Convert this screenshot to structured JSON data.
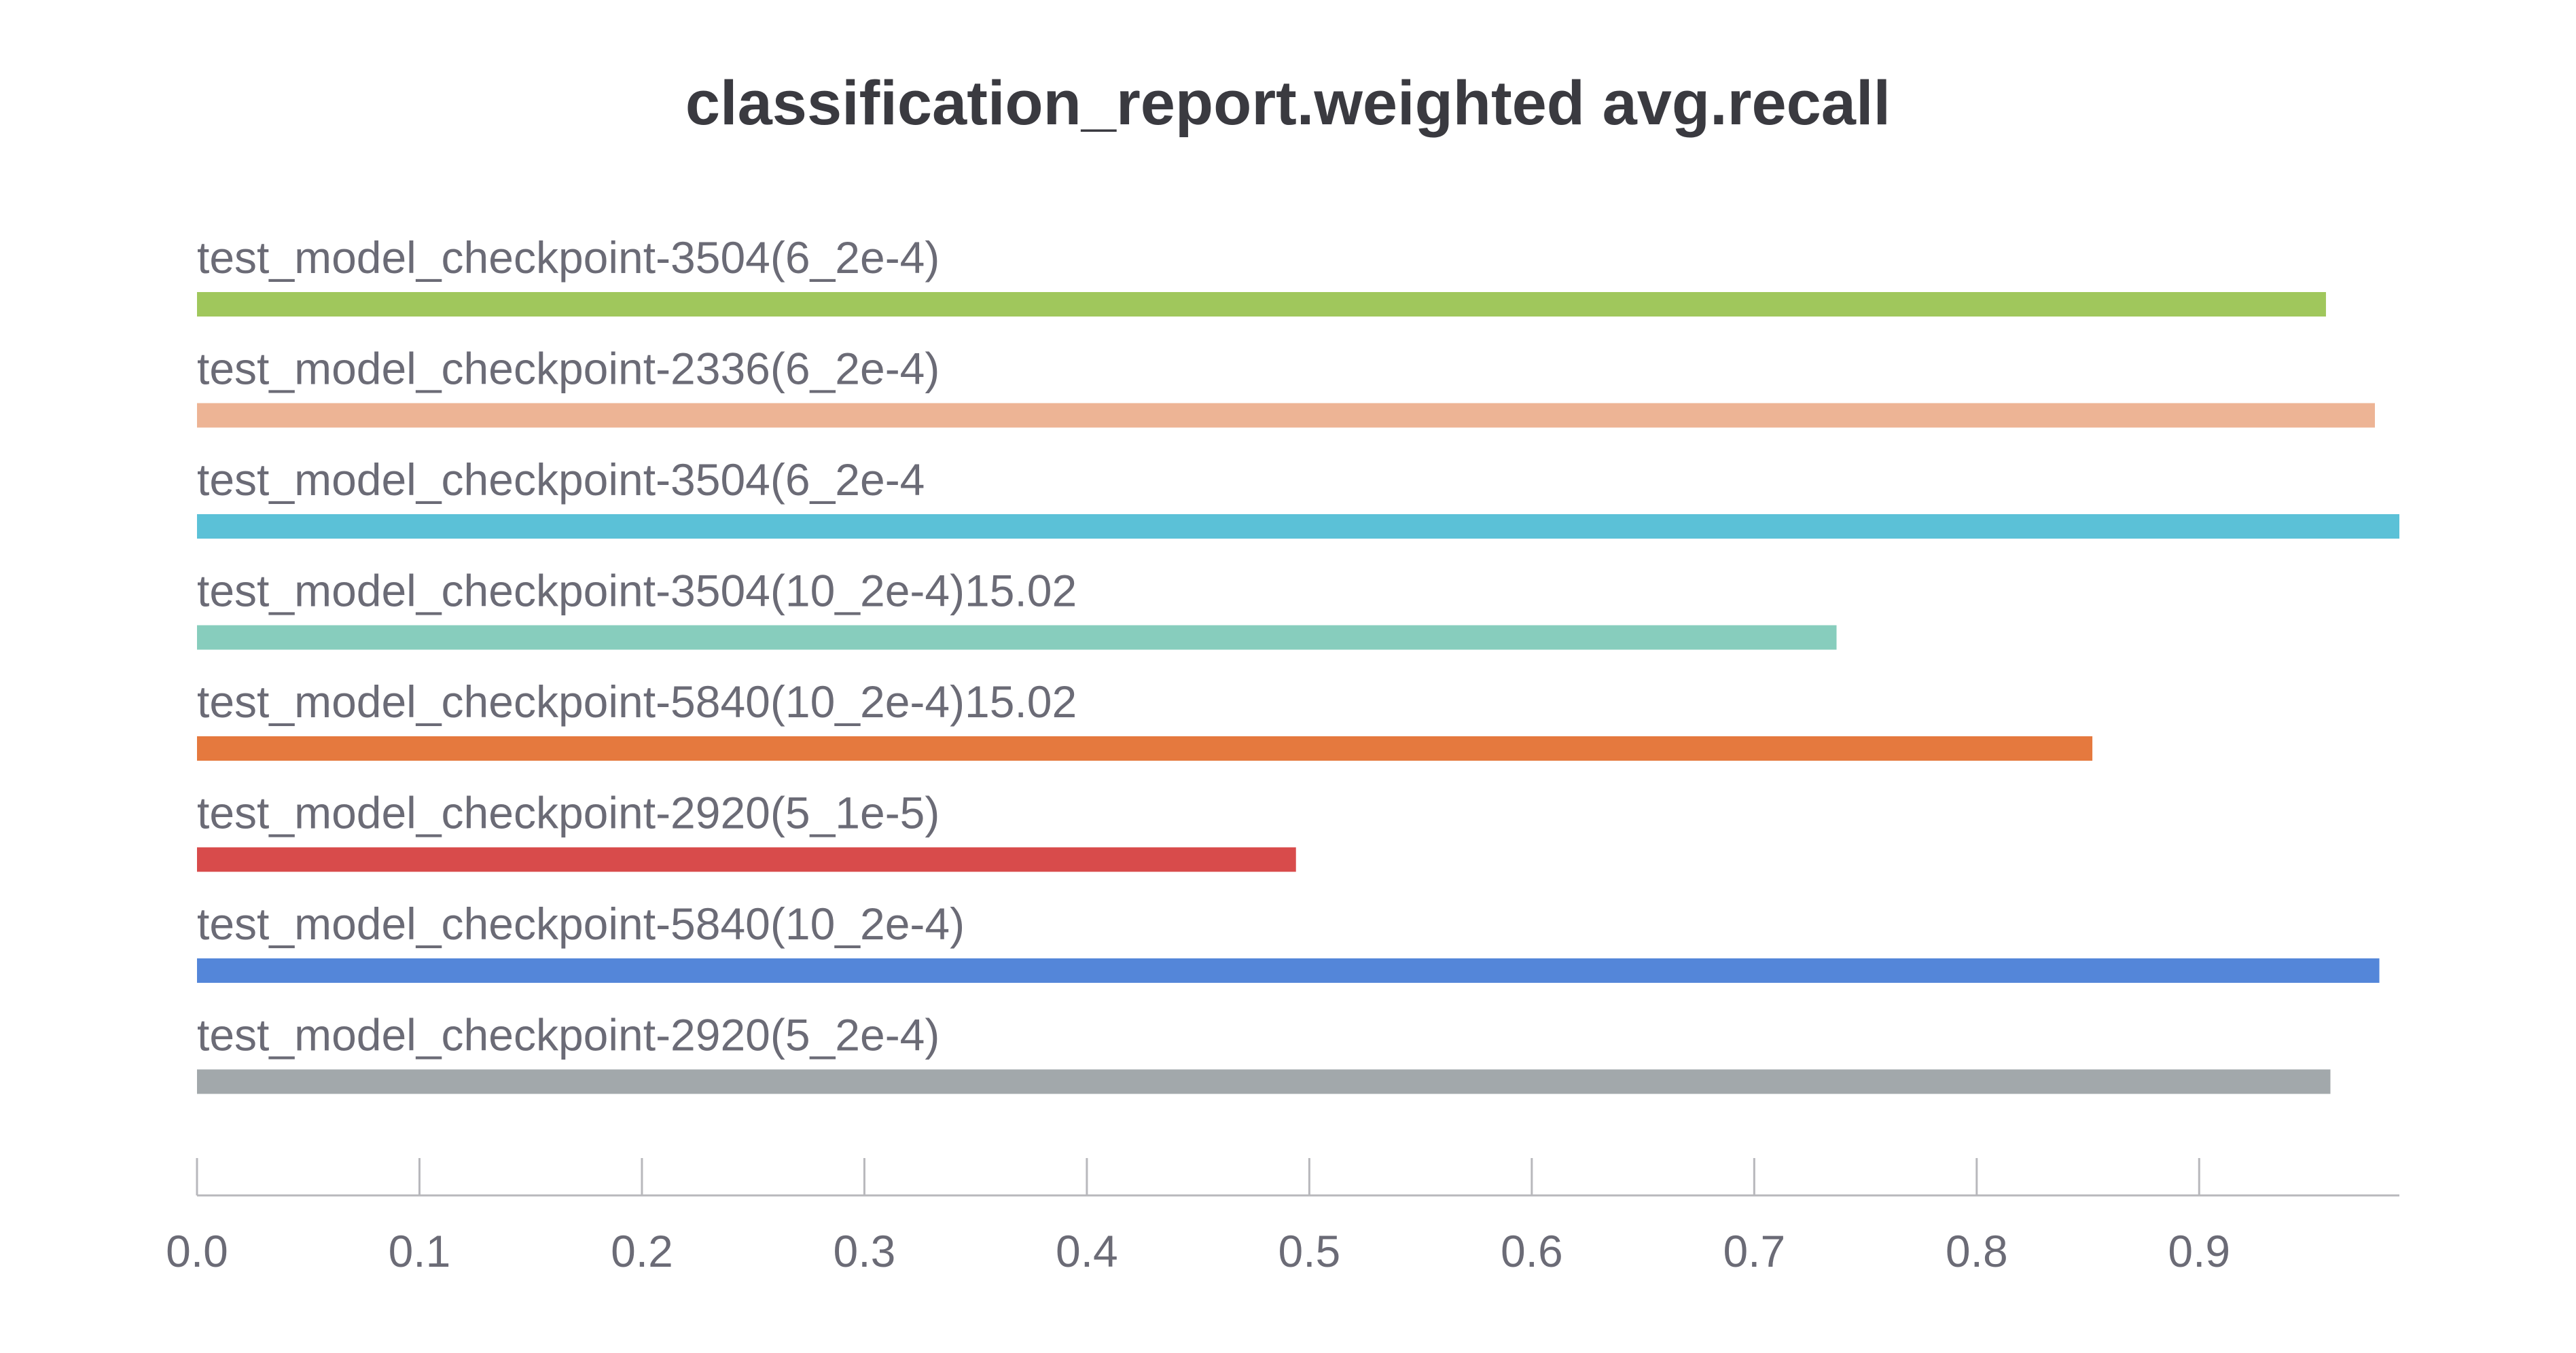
{
  "chart_data": {
    "type": "bar",
    "orientation": "horizontal",
    "title": "classification_report.weighted avg.recall",
    "xlabel": "",
    "ylabel": "",
    "xlim": [
      0,
      0.99
    ],
    "x_ticks": [
      "0.0",
      "0.1",
      "0.2",
      "0.3",
      "0.4",
      "0.5",
      "0.6",
      "0.7",
      "0.8",
      "0.9"
    ],
    "grid": false,
    "legend": "none",
    "categories": [
      "test_model_checkpoint-3504(6_2e-4)",
      "test_model_checkpoint-2336(6_2e-4)",
      "test_model_checkpoint-3504(6_2e-4",
      "test_model_checkpoint-3504(10_2e-4)15.02",
      "test_model_checkpoint-5840(10_2e-4)15.02",
      "test_model_checkpoint-2920(5_1e-5)",
      "test_model_checkpoint-5840(10_2e-4)",
      "test_model_checkpoint-2920(5_2e-4)"
    ],
    "values": [
      0.957,
      0.979,
      0.99,
      0.737,
      0.852,
      0.494,
      0.981,
      0.959
    ],
    "colors": [
      "#a0c75c",
      "#edb495",
      "#5bc1d7",
      "#87cdbd",
      "#e5793e",
      "#d84b4b",
      "#5486d9",
      "#a2a8ab"
    ]
  }
}
